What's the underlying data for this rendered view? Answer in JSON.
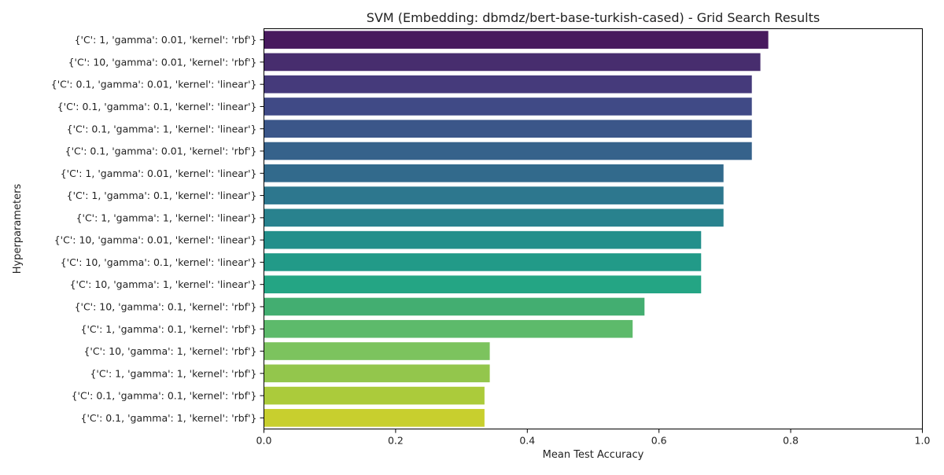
{
  "chart_data": {
    "type": "bar",
    "orientation": "horizontal",
    "title": "SVM (Embedding: dbmdz/bert-base-turkish-cased) - Grid Search Results",
    "xlabel": "Mean Test Accuracy",
    "ylabel": "Hyperparameters",
    "xlim": [
      0,
      1
    ],
    "xticks": [
      "0.0",
      "0.2",
      "0.4",
      "0.6",
      "0.8",
      "1.0"
    ],
    "grid": false,
    "categories": [
      "{'C': 1, 'gamma': 0.01, 'kernel': 'rbf'}",
      "{'C': 10, 'gamma': 0.01, 'kernel': 'rbf'}",
      "{'C': 0.1, 'gamma': 0.01, 'kernel': 'linear'}",
      "{'C': 0.1, 'gamma': 0.1, 'kernel': 'linear'}",
      "{'C': 0.1, 'gamma': 1, 'kernel': 'linear'}",
      "{'C': 0.1, 'gamma': 0.01, 'kernel': 'rbf'}",
      "{'C': 1, 'gamma': 0.01, 'kernel': 'linear'}",
      "{'C': 1, 'gamma': 0.1, 'kernel': 'linear'}",
      "{'C': 1, 'gamma': 1, 'kernel': 'linear'}",
      "{'C': 10, 'gamma': 0.01, 'kernel': 'linear'}",
      "{'C': 10, 'gamma': 0.1, 'kernel': 'linear'}",
      "{'C': 10, 'gamma': 1, 'kernel': 'linear'}",
      "{'C': 10, 'gamma': 0.1, 'kernel': 'rbf'}",
      "{'C': 1, 'gamma': 0.1, 'kernel': 'rbf'}",
      "{'C': 10, 'gamma': 1, 'kernel': 'rbf'}",
      "{'C': 1, 'gamma': 1, 'kernel': 'rbf'}",
      "{'C': 0.1, 'gamma': 0.1, 'kernel': 'rbf'}",
      "{'C': 0.1, 'gamma': 1, 'kernel': 'rbf'}"
    ],
    "values": [
      0.766,
      0.754,
      0.741,
      0.741,
      0.741,
      0.741,
      0.698,
      0.698,
      0.698,
      0.664,
      0.664,
      0.664,
      0.578,
      0.56,
      0.343,
      0.343,
      0.335,
      0.335
    ],
    "colors": [
      "#481a5e",
      "#472d6e",
      "#453a7b",
      "#404a86",
      "#3b5689",
      "#36628b",
      "#326a8c",
      "#2d778e",
      "#29828e",
      "#238f8b",
      "#229a88",
      "#24a584",
      "#43ae71",
      "#5dba6b",
      "#7cc35e",
      "#93c64c",
      "#abcb3b",
      "#c8cf2e"
    ]
  }
}
